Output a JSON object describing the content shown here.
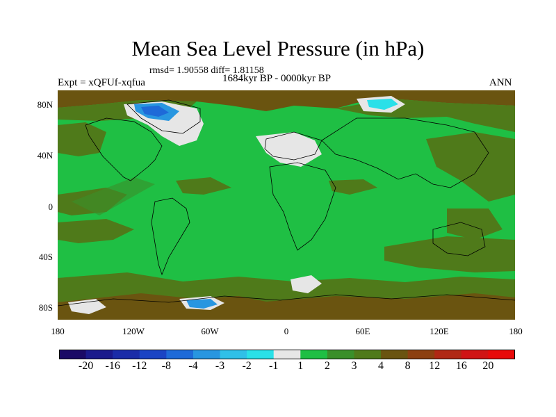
{
  "title": "Mean Sea Level Pressure (in hPa)",
  "stats": "rmsd= 1.90558 diff= 1.81158",
  "experiment": "Expt = xQFUf-xqfua",
  "period": "1684kyr BP - 0000kyr BP",
  "season": "ANN",
  "lat_labels": [
    "80N",
    "40N",
    "0",
    "40S",
    "80S"
  ],
  "lon_labels": [
    "180",
    "120W",
    "60W",
    "0",
    "60E",
    "120E",
    "180"
  ],
  "colorbar": {
    "labels": [
      "-20",
      "-16",
      "-12",
      "-8",
      "-4",
      "-3",
      "-2",
      "-1",
      "1",
      "2",
      "3",
      "4",
      "8",
      "12",
      "16",
      "20"
    ],
    "colors": [
      "#1a0a66",
      "#1a1a8c",
      "#1a2ca8",
      "#1a44c4",
      "#1e6ad8",
      "#2896e0",
      "#30c0e8",
      "#2ae0e8",
      "#e6e6e6",
      "#1fbf44",
      "#3a8f2a",
      "#4f7a1a",
      "#6a5410",
      "#8c4010",
      "#b02814",
      "#d01414",
      "#e80a0a"
    ]
  },
  "map_colors": {
    "ocean_base": "#1fbf44",
    "positive_high": "#4f7a1a",
    "positive_mid": "#3a8f2a",
    "positive_strong": "#6a5410",
    "near_zero": "#e6e6e6",
    "negative_weak": "#2ae0e8",
    "negative_mid": "#2896e0",
    "negative_strong": "#1e6ad8",
    "coastline": "#000000"
  }
}
